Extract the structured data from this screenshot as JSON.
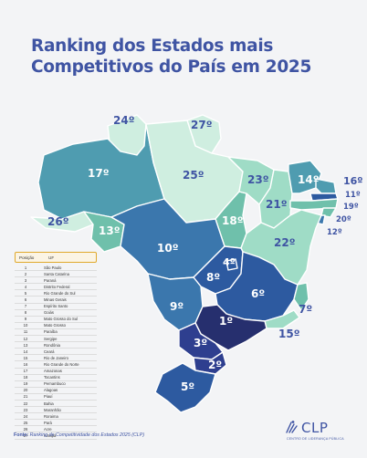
{
  "title": {
    "line1": "Ranking dos Estados mais",
    "line2": "Competitivos do País em 2025"
  },
  "colors": {
    "title": "#3f54a3",
    "tier_lightest": "#cfeee0",
    "tier_light": "#9fdcc6",
    "tier_mid_green": "#6fc0ab",
    "tier_teal": "#4f9cb0",
    "tier_blue": "#3b77ad",
    "tier_dark_blue": "#2d5aa0",
    "tier_navy": "#2e3f8f",
    "tier_darkest": "#262f6e",
    "border": "#ffffff"
  },
  "map": {
    "region": "Brasil",
    "labels": {
      "RR": "24º",
      "AP": "27º",
      "AM": "17º",
      "PA": "25º",
      "MA": "23º",
      "CE": "14º",
      "RN": "16º",
      "PB": "11º",
      "PE": "19º",
      "AL": "20º",
      "SE": "12º",
      "PI": "21º",
      "BA": "22º",
      "TO": "18º",
      "AC": "26º",
      "RO": "13º",
      "MT": "10º",
      "GO": "8º",
      "DF": "4º",
      "MS": "9º",
      "MG": "6º",
      "ES": "7º",
      "RJ": "15º",
      "SP": "1º",
      "PR": "3º",
      "SC": "2º",
      "RS": "5º"
    }
  },
  "legend": {
    "header_position": "Posição",
    "header_uf": "UF",
    "rows": [
      {
        "pos": "1",
        "uf": "São Paulo"
      },
      {
        "pos": "2",
        "uf": "Santa Catarina"
      },
      {
        "pos": "3",
        "uf": "Paraná"
      },
      {
        "pos": "4",
        "uf": "Distrito Federal"
      },
      {
        "pos": "5",
        "uf": "Rio Grande do Sul"
      },
      {
        "pos": "6",
        "uf": "Minas Gerais"
      },
      {
        "pos": "7",
        "uf": "Espírito Santo"
      },
      {
        "pos": "8",
        "uf": "Goiás"
      },
      {
        "pos": "9",
        "uf": "Mato Grosso do Sul"
      },
      {
        "pos": "10",
        "uf": "Mato Grosso"
      },
      {
        "pos": "11",
        "uf": "Paraíba"
      },
      {
        "pos": "12",
        "uf": "Sergipe"
      },
      {
        "pos": "13",
        "uf": "Rondônia"
      },
      {
        "pos": "14",
        "uf": "Ceará"
      },
      {
        "pos": "15",
        "uf": "Rio de Janeiro"
      },
      {
        "pos": "16",
        "uf": "Rio Grande do Norte"
      },
      {
        "pos": "17",
        "uf": "Amazonas"
      },
      {
        "pos": "18",
        "uf": "Tocantins"
      },
      {
        "pos": "19",
        "uf": "Pernambuco"
      },
      {
        "pos": "20",
        "uf": "Alagoas"
      },
      {
        "pos": "21",
        "uf": "Piauí"
      },
      {
        "pos": "22",
        "uf": "Bahia"
      },
      {
        "pos": "23",
        "uf": "Maranhão"
      },
      {
        "pos": "24",
        "uf": "Roraima"
      },
      {
        "pos": "25",
        "uf": "Pará"
      },
      {
        "pos": "26",
        "uf": "Acre"
      },
      {
        "pos": "27",
        "uf": "Amapá"
      }
    ]
  },
  "source": {
    "label": "Fonte:",
    "text": "Ranking de Competitividade dos Estados 2025 (CLP)"
  },
  "logo": {
    "name": "CLP",
    "subtitle": "CENTRO DE LIDERANÇA PÚBLICA"
  }
}
